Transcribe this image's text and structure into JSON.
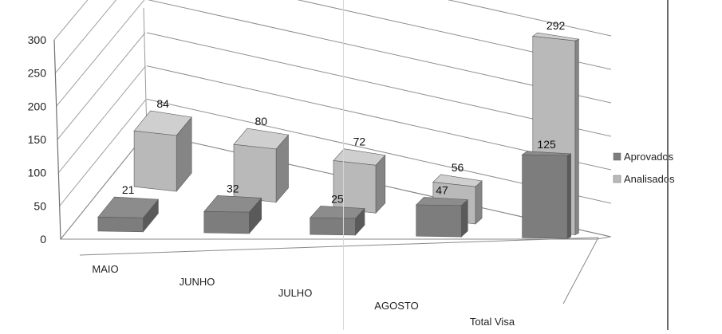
{
  "chart_data": {
    "type": "bar",
    "view": "3d-clustered-columns",
    "categories": [
      "MAIO",
      "JUNHO",
      "JULHO",
      "AGOSTO",
      "Total Visa"
    ],
    "series": [
      {
        "name": "Aprovados",
        "values": [
          21,
          32,
          25,
          47,
          125
        ],
        "color": "#7d7d7d"
      },
      {
        "name": "Analisados",
        "values": [
          84,
          80,
          72,
          56,
          292
        ],
        "color": "#b9b9b9"
      }
    ],
    "ylim": [
      0,
      300
    ],
    "yticks": [
      "300",
      "250",
      "200",
      "150",
      "100",
      "50",
      "0"
    ],
    "ytick_values": [
      300,
      250,
      200,
      150,
      100,
      50,
      0
    ],
    "grid": true,
    "legend": "right",
    "title": "",
    "xlabel": "",
    "ylabel": ""
  }
}
